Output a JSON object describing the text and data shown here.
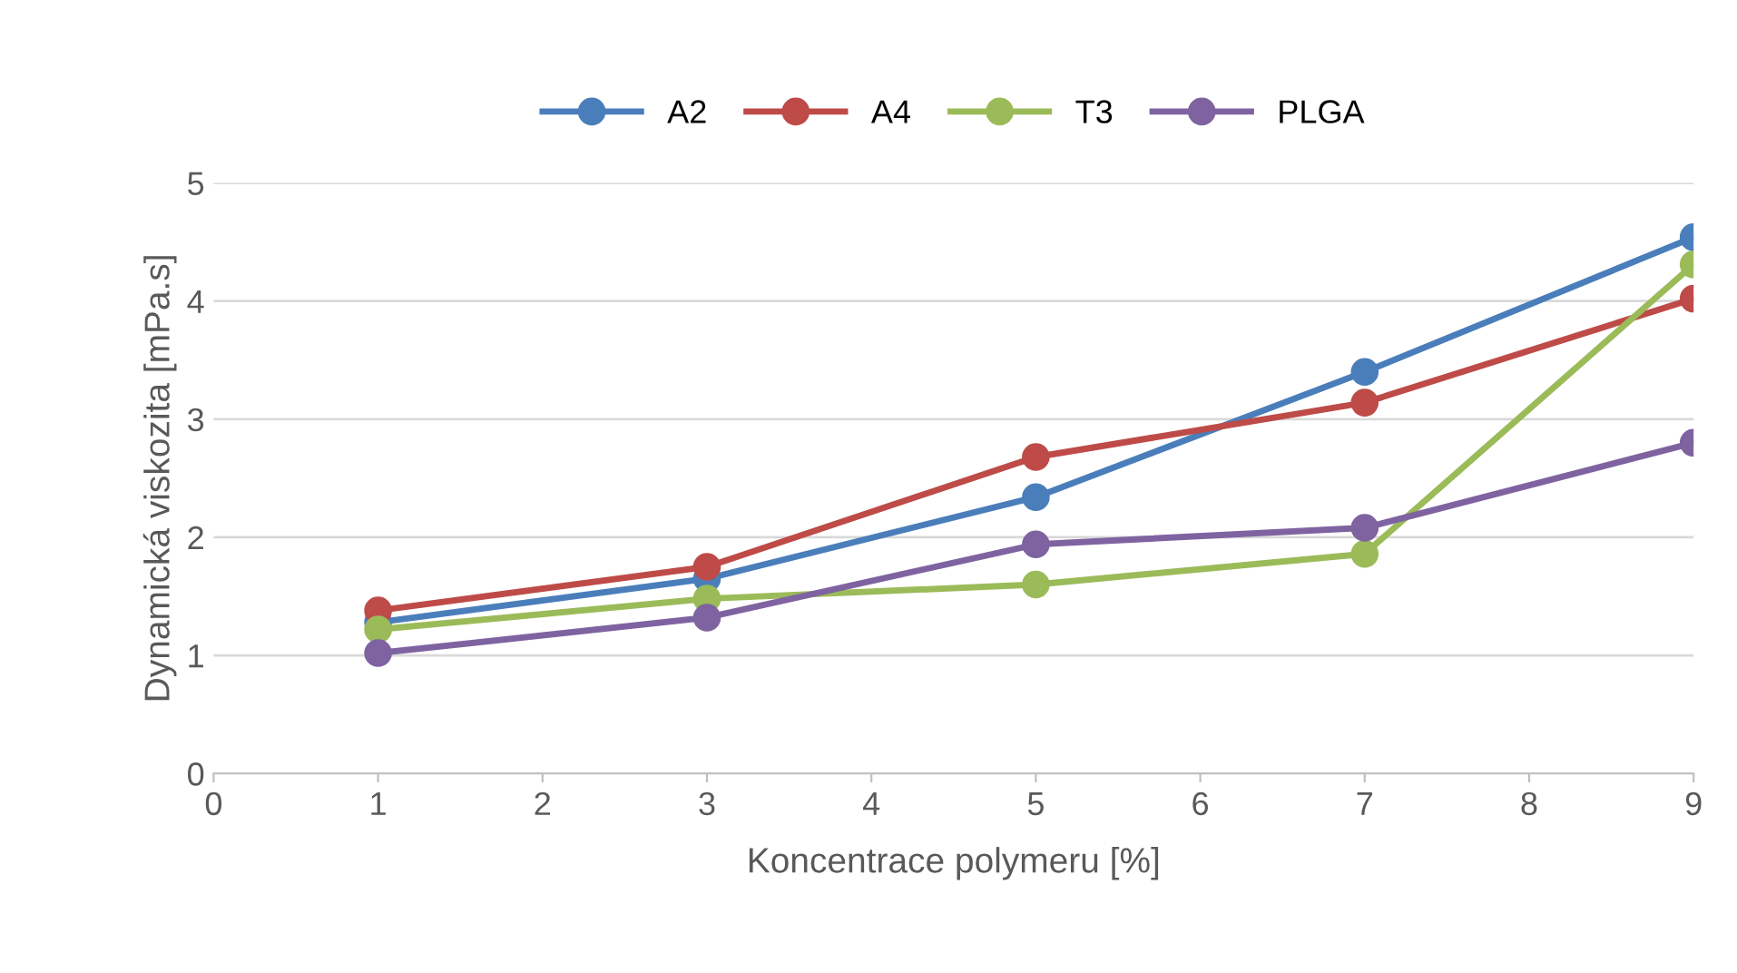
{
  "chart_data": {
    "type": "line",
    "xlabel": "Koncentrace polymeru [%]",
    "ylabel": "Dynamická viskozita [mPa.s]",
    "x": [
      1,
      3,
      5,
      7,
      9
    ],
    "series": [
      {
        "name": "A2",
        "color": "#4a7ebb",
        "values": [
          1.28,
          1.65,
          2.34,
          3.4,
          4.54
        ]
      },
      {
        "name": "A4",
        "color": "#be4b48",
        "values": [
          1.38,
          1.75,
          2.68,
          3.14,
          4.02
        ]
      },
      {
        "name": "T3",
        "color": "#9bbb59",
        "values": [
          1.22,
          1.48,
          1.6,
          1.86,
          4.31
        ]
      },
      {
        "name": "PLGA",
        "color": "#7f63a1",
        "values": [
          1.02,
          1.32,
          1.94,
          2.08,
          2.8
        ]
      }
    ],
    "xlim": [
      0,
      9
    ],
    "xticks": [
      0,
      1,
      2,
      3,
      4,
      5,
      6,
      7,
      8,
      9
    ],
    "ylim": [
      0,
      5
    ],
    "yticks": [
      0,
      1,
      2,
      3,
      4,
      5
    ],
    "grid": "y",
    "legend": "top",
    "marker": "circle",
    "line_style": "solid"
  }
}
